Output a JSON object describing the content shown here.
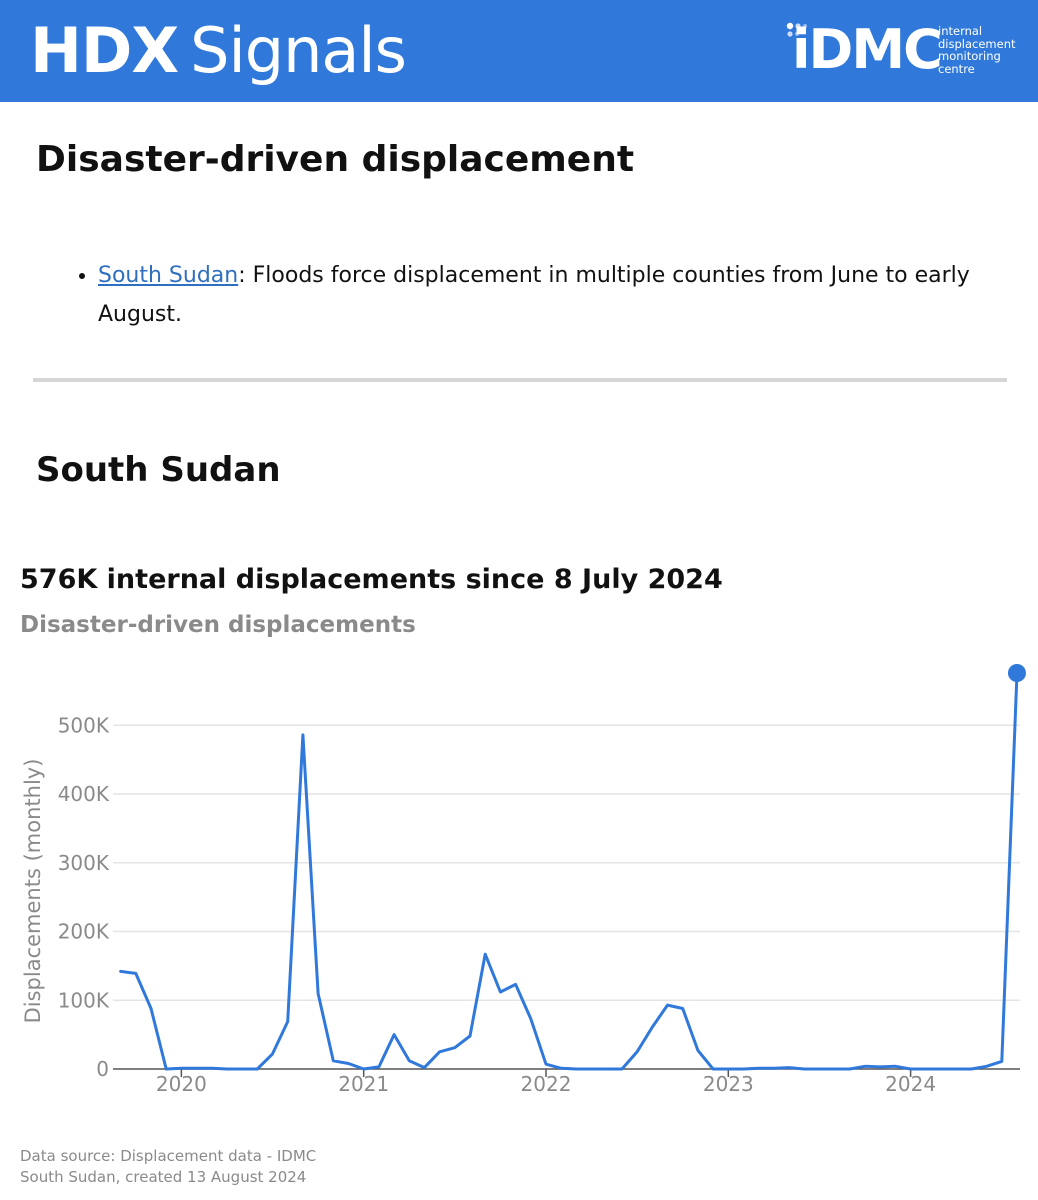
{
  "header": {
    "brand_bold": "HDX",
    "brand_light": "Signals",
    "partner_logo": {
      "wordmark": "iDMC",
      "tagline_lines": [
        "internal",
        "displacement",
        "monitoring",
        "centre"
      ]
    }
  },
  "section": {
    "title": "Disaster-driven displacement",
    "bullets": [
      {
        "link_text": "South Sudan",
        "text": ": Floods force displacement in multiple counties from June to early August."
      }
    ]
  },
  "country": {
    "title": "South Sudan"
  },
  "chart_data": {
    "type": "line",
    "title": "576K internal displacements since 8 July 2024",
    "subtitle": "Disaster-driven displacements",
    "xlabel": "",
    "ylabel": "Displacements (monthly)",
    "x_ticks": [
      "2020",
      "2021",
      "2022",
      "2023",
      "2024"
    ],
    "y_ticks": [
      "0",
      "100K",
      "200K",
      "300K",
      "400K",
      "500K"
    ],
    "ylim": [
      0,
      576000
    ],
    "xlim": [
      "2019-09",
      "2024-08"
    ],
    "grid": "horizontal",
    "color": "#3079db",
    "highlight_last_point": true,
    "x": [
      "2019-09",
      "2019-10",
      "2019-11",
      "2019-12",
      "2020-01",
      "2020-02",
      "2020-03",
      "2020-04",
      "2020-05",
      "2020-06",
      "2020-07",
      "2020-08",
      "2020-09",
      "2020-10",
      "2020-11",
      "2020-12",
      "2021-01",
      "2021-02",
      "2021-03",
      "2021-04",
      "2021-05",
      "2021-06",
      "2021-07",
      "2021-08",
      "2021-09",
      "2021-10",
      "2021-11",
      "2021-12",
      "2022-01",
      "2022-02",
      "2022-03",
      "2022-04",
      "2022-05",
      "2022-06",
      "2022-07",
      "2022-08",
      "2022-09",
      "2022-10",
      "2022-11",
      "2022-12",
      "2023-01",
      "2023-02",
      "2023-03",
      "2023-04",
      "2023-05",
      "2023-06",
      "2023-07",
      "2023-08",
      "2023-09",
      "2023-10",
      "2023-11",
      "2023-12",
      "2024-01",
      "2024-02",
      "2024-03",
      "2024-04",
      "2024-05",
      "2024-06",
      "2024-07",
      "2024-08"
    ],
    "values": [
      142000,
      139000,
      88000,
      0,
      1000,
      1000,
      1000,
      0,
      0,
      0,
      22000,
      69000,
      486000,
      110000,
      12000,
      8000,
      0,
      3000,
      50000,
      12000,
      2000,
      25000,
      31000,
      48000,
      167000,
      112000,
      123000,
      73000,
      7000,
      1000,
      0,
      0,
      0,
      0,
      25000,
      61000,
      93000,
      88000,
      27000,
      0,
      0,
      0,
      1000,
      1000,
      2000,
      0,
      0,
      0,
      0,
      4000,
      3000,
      4000,
      0,
      0,
      0,
      0,
      0,
      4000,
      11000,
      576000
    ]
  },
  "source": {
    "line1": "Data source: Displacement data - IDMC",
    "line2": "South Sudan, created 13 August 2024"
  }
}
